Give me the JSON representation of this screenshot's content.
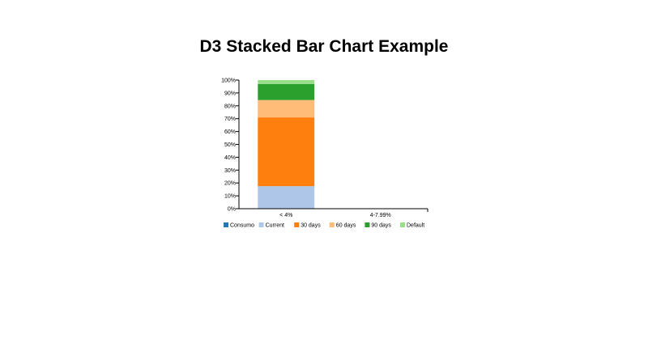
{
  "page": {
    "title": "D3 Stacked Bar Chart Example"
  },
  "chart_data": {
    "type": "bar",
    "stacked": true,
    "title": "D3 Stacked Bar Chart Example",
    "categories": [
      "< 4%",
      "4-7.99%"
    ],
    "series": [
      {
        "name": "Consumo",
        "color": "#1f77b4",
        "values": [
          0,
          0
        ]
      },
      {
        "name": "Current",
        "color": "#aec7e8",
        "values": [
          17.5,
          0
        ]
      },
      {
        "name": "30 days",
        "color": "#ff7f0e",
        "values": [
          53.5,
          0
        ]
      },
      {
        "name": "60 days",
        "color": "#ffbb78",
        "values": [
          13.5,
          0
        ]
      },
      {
        "name": "90 days",
        "color": "#2ca02c",
        "values": [
          12.5,
          0
        ]
      },
      {
        "name": "Default",
        "color": "#98df8a",
        "values": [
          3,
          0
        ]
      }
    ],
    "ylim": [
      0,
      100
    ],
    "y_ticks": [
      "0%",
      "10%",
      "20%",
      "30%",
      "40%",
      "50%",
      "60%",
      "70%",
      "80%",
      "90%",
      "100%"
    ],
    "grid": false,
    "legend_position": "bottom"
  }
}
